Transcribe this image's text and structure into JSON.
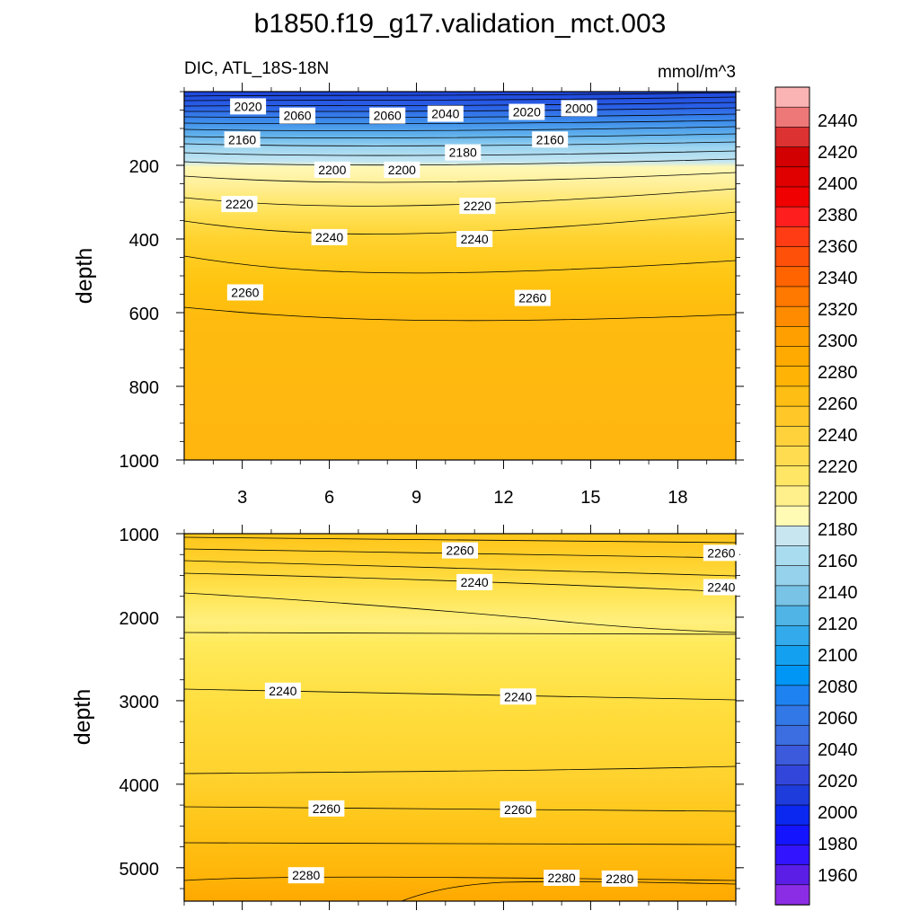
{
  "chart_data": {
    "type": "contour",
    "title": "b1850.f19_g17.validation_mct.003",
    "left_label": "DIC, ATL_18S-18N",
    "right_label": "mmol/m^3",
    "x": {
      "ticks": [
        3,
        6,
        9,
        12,
        15,
        18
      ],
      "range": [
        1,
        20
      ]
    },
    "upper_panel": {
      "ylabel": "depth",
      "ylim": [
        0,
        1000
      ],
      "yticks": [
        200,
        400,
        600,
        800,
        1000
      ],
      "contour_labels": [
        {
          "text": "2020",
          "x": 3.2,
          "depth": 40
        },
        {
          "text": "2060",
          "x": 4.9,
          "depth": 65
        },
        {
          "text": "2060",
          "x": 8.0,
          "depth": 65
        },
        {
          "text": "2040",
          "x": 10.0,
          "depth": 60
        },
        {
          "text": "2020",
          "x": 12.8,
          "depth": 55
        },
        {
          "text": "2000",
          "x": 14.6,
          "depth": 45
        },
        {
          "text": "2160",
          "x": 3.0,
          "depth": 130
        },
        {
          "text": "2180",
          "x": 10.6,
          "depth": 165
        },
        {
          "text": "2160",
          "x": 13.6,
          "depth": 130
        },
        {
          "text": "2200",
          "x": 6.1,
          "depth": 212
        },
        {
          "text": "2200",
          "x": 8.5,
          "depth": 212
        },
        {
          "text": "2220",
          "x": 2.9,
          "depth": 305
        },
        {
          "text": "2220",
          "x": 11.1,
          "depth": 310
        },
        {
          "text": "2240",
          "x": 6.0,
          "depth": 395
        },
        {
          "text": "2240",
          "x": 11.0,
          "depth": 400
        },
        {
          "text": "2260",
          "x": 3.1,
          "depth": 545
        },
        {
          "text": "2260",
          "x": 13.0,
          "depth": 560
        }
      ]
    },
    "lower_panel": {
      "ylabel": "depth",
      "ylim": [
        1000,
        5400
      ],
      "yticks": [
        1000,
        2000,
        3000,
        4000,
        5000
      ],
      "contour_labels": [
        {
          "text": "2260",
          "x": 10.5,
          "depth": 1200
        },
        {
          "text": "2260",
          "x": 19.5,
          "depth": 1230
        },
        {
          "text": "2240",
          "x": 11.0,
          "depth": 1580
        },
        {
          "text": "2240",
          "x": 19.5,
          "depth": 1640
        },
        {
          "text": "2240",
          "x": 4.4,
          "depth": 2880
        },
        {
          "text": "2240",
          "x": 12.5,
          "depth": 2950
        },
        {
          "text": "2260",
          "x": 5.9,
          "depth": 4290
        },
        {
          "text": "2260",
          "x": 12.5,
          "depth": 4300
        },
        {
          "text": "2280",
          "x": 5.2,
          "depth": 5090
        },
        {
          "text": "2280",
          "x": 14.0,
          "depth": 5120
        },
        {
          "text": "2280",
          "x": 16.0,
          "depth": 5130
        }
      ]
    },
    "colorbar": {
      "labels": [
        2440,
        2420,
        2400,
        2380,
        2360,
        2340,
        2320,
        2300,
        2280,
        2260,
        2240,
        2220,
        2200,
        2180,
        2160,
        2140,
        2120,
        2100,
        2080,
        2060,
        2040,
        2020,
        2000,
        1980,
        1960
      ],
      "colors": [
        "#fbb4b4",
        "#ee7878",
        "#dc3232",
        "#d20000",
        "#e10000",
        "#f00000",
        "#ff1e1e",
        "#ff3c14",
        "#ff500a",
        "#ff6400",
        "#ff7800",
        "#ff8c00",
        "#ffa000",
        "#ffaa00",
        "#ffb405",
        "#ffbe14",
        "#ffc828",
        "#ffd23c",
        "#ffdc50",
        "#ffe664",
        "#fff08c",
        "#fffab4",
        "#c8e6f0",
        "#aadcf0",
        "#96d2eb",
        "#78c3e6",
        "#50b4e6",
        "#32aaeb",
        "#14a0f0",
        "#0096f5",
        "#1e82f0",
        "#3278e6",
        "#3c6ee1",
        "#3c5adc",
        "#3246dc",
        "#1e3cdc",
        "#0a28f0",
        "#1414ff",
        "#3214ff",
        "#5a1ee6",
        "#8c2de6"
      ]
    }
  }
}
